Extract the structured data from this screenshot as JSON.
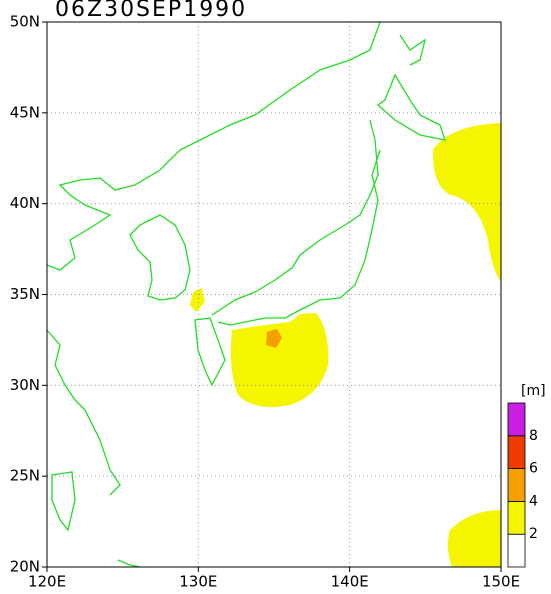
{
  "map": {
    "title": "06Z30SEP1990",
    "lonlim": [
      120,
      150
    ],
    "latlim": [
      20,
      50
    ],
    "lon_ticks": [
      {
        "value": 120,
        "label": "120E"
      },
      {
        "value": 130,
        "label": "130E"
      },
      {
        "value": 140,
        "label": "140E"
      },
      {
        "value": 150,
        "label": "150E"
      }
    ],
    "lat_ticks": [
      {
        "value": 20,
        "label": "20N"
      },
      {
        "value": 25,
        "label": "25N"
      },
      {
        "value": 30,
        "label": "30N"
      },
      {
        "value": 35,
        "label": "35N"
      },
      {
        "value": 40,
        "label": "40N"
      },
      {
        "value": 45,
        "label": "45N"
      },
      {
        "value": 50,
        "label": "50N"
      }
    ],
    "colorbar": {
      "unit": "[m]",
      "lim": [
        0,
        10
      ],
      "levels": [
        2,
        4,
        6,
        8
      ],
      "colors": [
        "#ffffff",
        "#f5f500",
        "#f5a000",
        "#f03c00",
        "#c81ee6"
      ]
    }
  }
}
